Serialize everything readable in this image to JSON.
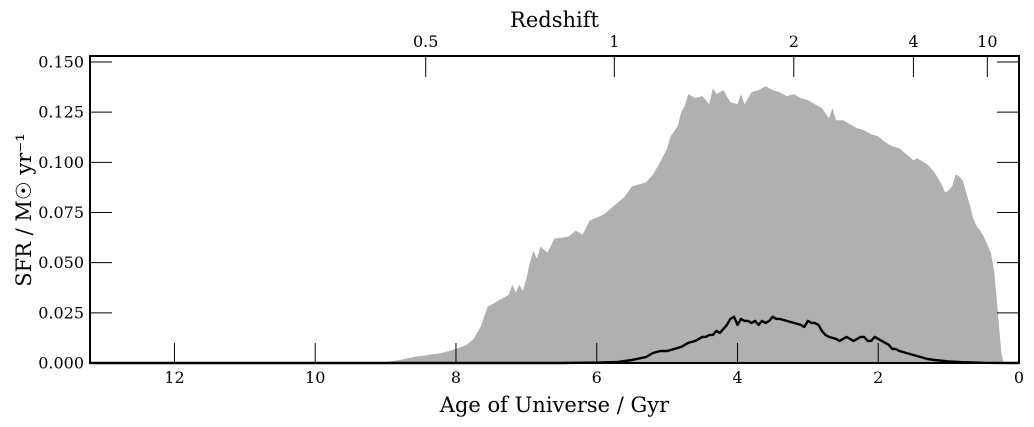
{
  "chart_data": {
    "type": "area",
    "xlabel": "Age of Universe / Gyr",
    "ylabel": "SFR / M☉ yr⁻¹",
    "x2label": "Redshift",
    "xlim": [
      13.2,
      0
    ],
    "ylim": [
      0,
      0.153
    ],
    "x_ticks": [
      "12",
      "10",
      "8",
      "6",
      "4",
      "2",
      "0"
    ],
    "y_ticks": [
      "0.000",
      "0.025",
      "0.050",
      "0.075",
      "0.100",
      "0.125",
      "0.150"
    ],
    "x2_ticks": [
      {
        "label": "0.5",
        "age": 8.43
      },
      {
        "label": "1",
        "age": 5.75
      },
      {
        "label": "2",
        "age": 3.2
      },
      {
        "label": "4",
        "age": 1.5
      },
      {
        "label": "10",
        "age": 0.45
      }
    ],
    "series": [
      {
        "fill": "#b0b0b0",
        "style": "filled",
        "points": [
          [
            13.2,
            0
          ],
          [
            9.2,
            0
          ],
          [
            9.0,
            0.0005
          ],
          [
            8.8,
            0.0015
          ],
          [
            8.6,
            0.003
          ],
          [
            8.4,
            0.004
          ],
          [
            8.2,
            0.005
          ],
          [
            8.0,
            0.007
          ],
          [
            7.85,
            0.009
          ],
          [
            7.75,
            0.012
          ],
          [
            7.65,
            0.018
          ],
          [
            7.55,
            0.028
          ],
          [
            7.4,
            0.031
          ],
          [
            7.25,
            0.034
          ],
          [
            7.2,
            0.039
          ],
          [
            7.15,
            0.035
          ],
          [
            7.1,
            0.039
          ],
          [
            7.05,
            0.036
          ],
          [
            7.0,
            0.042
          ],
          [
            6.95,
            0.05
          ],
          [
            6.9,
            0.056
          ],
          [
            6.85,
            0.052
          ],
          [
            6.8,
            0.058
          ],
          [
            6.7,
            0.055
          ],
          [
            6.6,
            0.062
          ],
          [
            6.4,
            0.063
          ],
          [
            6.3,
            0.066
          ],
          [
            6.2,
            0.064
          ],
          [
            6.1,
            0.071
          ],
          [
            5.9,
            0.074
          ],
          [
            5.7,
            0.08
          ],
          [
            5.6,
            0.083
          ],
          [
            5.5,
            0.088
          ],
          [
            5.4,
            0.089
          ],
          [
            5.3,
            0.09
          ],
          [
            5.2,
            0.094
          ],
          [
            5.1,
            0.1
          ],
          [
            5.0,
            0.107
          ],
          [
            4.95,
            0.113
          ],
          [
            4.85,
            0.118
          ],
          [
            4.8,
            0.125
          ],
          [
            4.75,
            0.128
          ],
          [
            4.7,
            0.134
          ],
          [
            4.6,
            0.132
          ],
          [
            4.5,
            0.133
          ],
          [
            4.4,
            0.129
          ],
          [
            4.35,
            0.137
          ],
          [
            4.3,
            0.134
          ],
          [
            4.2,
            0.136
          ],
          [
            4.1,
            0.13
          ],
          [
            4.0,
            0.129
          ],
          [
            3.95,
            0.134
          ],
          [
            3.9,
            0.129
          ],
          [
            3.8,
            0.135
          ],
          [
            3.7,
            0.136
          ],
          [
            3.6,
            0.138
          ],
          [
            3.5,
            0.136
          ],
          [
            3.4,
            0.135
          ],
          [
            3.3,
            0.133
          ],
          [
            3.2,
            0.134
          ],
          [
            3.1,
            0.132
          ],
          [
            3.0,
            0.131
          ],
          [
            2.9,
            0.129
          ],
          [
            2.8,
            0.127
          ],
          [
            2.7,
            0.122
          ],
          [
            2.65,
            0.127
          ],
          [
            2.6,
            0.121
          ],
          [
            2.5,
            0.121
          ],
          [
            2.4,
            0.119
          ],
          [
            2.3,
            0.117
          ],
          [
            2.2,
            0.116
          ],
          [
            2.1,
            0.114
          ],
          [
            2.0,
            0.113
          ],
          [
            1.9,
            0.11
          ],
          [
            1.8,
            0.108
          ],
          [
            1.7,
            0.107
          ],
          [
            1.6,
            0.104
          ],
          [
            1.5,
            0.101
          ],
          [
            1.45,
            0.102
          ],
          [
            1.4,
            0.101
          ],
          [
            1.3,
            0.099
          ],
          [
            1.2,
            0.095
          ],
          [
            1.1,
            0.089
          ],
          [
            1.05,
            0.085
          ],
          [
            1.0,
            0.086
          ],
          [
            0.95,
            0.088
          ],
          [
            0.9,
            0.094
          ],
          [
            0.85,
            0.093
          ],
          [
            0.8,
            0.091
          ],
          [
            0.75,
            0.085
          ],
          [
            0.7,
            0.079
          ],
          [
            0.65,
            0.072
          ],
          [
            0.6,
            0.068
          ],
          [
            0.55,
            0.066
          ],
          [
            0.5,
            0.063
          ],
          [
            0.45,
            0.059
          ],
          [
            0.4,
            0.055
          ],
          [
            0.35,
            0.045
          ],
          [
            0.3,
            0.025
          ],
          [
            0.25,
            0.005
          ],
          [
            0.22,
            0
          ]
        ]
      },
      {
        "color": "#000000",
        "style": "line",
        "points": [
          [
            13.2,
            0
          ],
          [
            6.5,
            0
          ],
          [
            6.0,
            0.0002
          ],
          [
            5.7,
            0.0005
          ],
          [
            5.5,
            0.0015
          ],
          [
            5.3,
            0.003
          ],
          [
            5.2,
            0.005
          ],
          [
            5.1,
            0.006
          ],
          [
            5.0,
            0.006
          ],
          [
            4.9,
            0.007
          ],
          [
            4.8,
            0.008
          ],
          [
            4.7,
            0.01
          ],
          [
            4.6,
            0.011
          ],
          [
            4.55,
            0.012
          ],
          [
            4.5,
            0.013
          ],
          [
            4.45,
            0.013
          ],
          [
            4.4,
            0.014
          ],
          [
            4.35,
            0.014
          ],
          [
            4.3,
            0.016
          ],
          [
            4.25,
            0.015
          ],
          [
            4.2,
            0.017
          ],
          [
            4.15,
            0.019
          ],
          [
            4.1,
            0.022
          ],
          [
            4.05,
            0.023
          ],
          [
            4.0,
            0.019
          ],
          [
            3.95,
            0.022
          ],
          [
            3.9,
            0.021
          ],
          [
            3.85,
            0.021
          ],
          [
            3.8,
            0.02
          ],
          [
            3.75,
            0.021
          ],
          [
            3.7,
            0.019
          ],
          [
            3.65,
            0.021
          ],
          [
            3.6,
            0.02
          ],
          [
            3.55,
            0.021
          ],
          [
            3.5,
            0.023
          ],
          [
            3.45,
            0.022
          ],
          [
            3.4,
            0.022
          ],
          [
            3.3,
            0.021
          ],
          [
            3.2,
            0.02
          ],
          [
            3.1,
            0.019
          ],
          [
            3.05,
            0.018
          ],
          [
            3.0,
            0.021
          ],
          [
            2.95,
            0.02
          ],
          [
            2.9,
            0.02
          ],
          [
            2.85,
            0.019
          ],
          [
            2.8,
            0.016
          ],
          [
            2.75,
            0.014
          ],
          [
            2.7,
            0.013
          ],
          [
            2.6,
            0.012
          ],
          [
            2.55,
            0.011
          ],
          [
            2.5,
            0.012
          ],
          [
            2.45,
            0.013
          ],
          [
            2.4,
            0.012
          ],
          [
            2.35,
            0.011
          ],
          [
            2.3,
            0.012
          ],
          [
            2.25,
            0.013
          ],
          [
            2.2,
            0.013
          ],
          [
            2.15,
            0.011
          ],
          [
            2.1,
            0.011
          ],
          [
            2.05,
            0.013
          ],
          [
            2.0,
            0.012
          ],
          [
            1.95,
            0.011
          ],
          [
            1.9,
            0.01
          ],
          [
            1.85,
            0.009
          ],
          [
            1.8,
            0.007
          ],
          [
            1.75,
            0.007
          ],
          [
            1.7,
            0.006
          ],
          [
            1.6,
            0.005
          ],
          [
            1.5,
            0.004
          ],
          [
            1.4,
            0.003
          ],
          [
            1.3,
            0.002
          ],
          [
            1.2,
            0.0015
          ],
          [
            1.0,
            0.0008
          ],
          [
            0.8,
            0.0004
          ],
          [
            0.5,
            0.0001
          ],
          [
            0,
            0
          ]
        ]
      }
    ]
  }
}
